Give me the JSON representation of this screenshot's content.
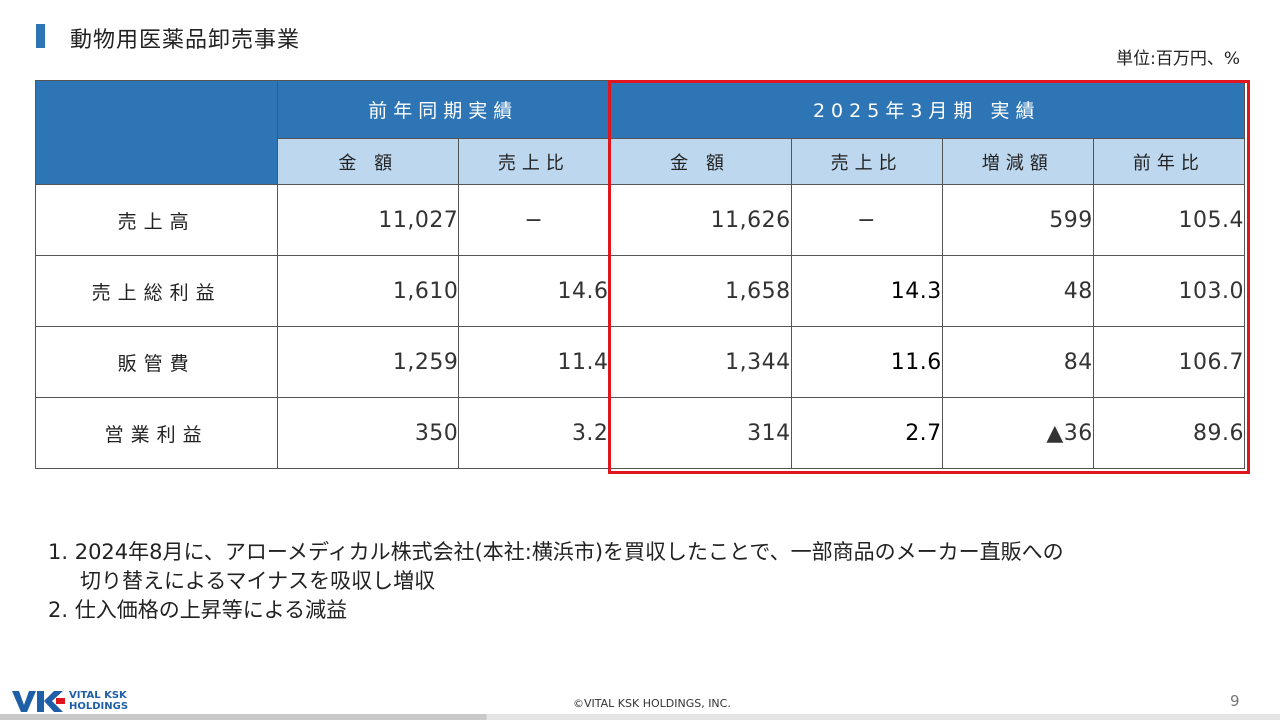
{
  "header": {
    "title": "動物用医薬品卸売事業",
    "unit": "単位:百万円、%"
  },
  "table": {
    "group_headers": [
      "前年同期実績",
      "2025年3月期 実績"
    ],
    "sub_headers": [
      "金 額",
      "売上比",
      "金 額",
      "売上比",
      "増減額",
      "前年比"
    ],
    "rows": [
      {
        "label": "売上高",
        "values": [
          "11,027",
          "−",
          "11,626",
          "−",
          "599",
          "105.4"
        ]
      },
      {
        "label": "売上総利益",
        "values": [
          "1,610",
          "14.6",
          "1,658",
          "14.3",
          "48",
          "103.0"
        ]
      },
      {
        "label": "販管費",
        "values": [
          "1,259",
          "11.4",
          "1,344",
          "11.6",
          "84",
          "106.7"
        ]
      },
      {
        "label": "営業利益",
        "values": [
          "350",
          "3.2",
          "314",
          "2.7",
          "▲36",
          "89.6"
        ]
      }
    ]
  },
  "notes": {
    "line1": "1. 2024年8月に、アローメディカル株式会社(本社:横浜市)を買収したことで、一部商品のメーカー直販への",
    "line1b": "切り替えによるマイナスを吸収し増収",
    "line2": "2. 仕入価格の上昇等による減益"
  },
  "footer": {
    "logo_line1": "VITAL KSK",
    "logo_line2": "HOLDINGS",
    "copyright": "©VITAL KSK HOLDINGS, INC.",
    "page": "9"
  },
  "colors": {
    "header_blue": "#2e75b6",
    "subheader_blue": "#bdd7ee",
    "highlight_red": "#e0161f"
  }
}
